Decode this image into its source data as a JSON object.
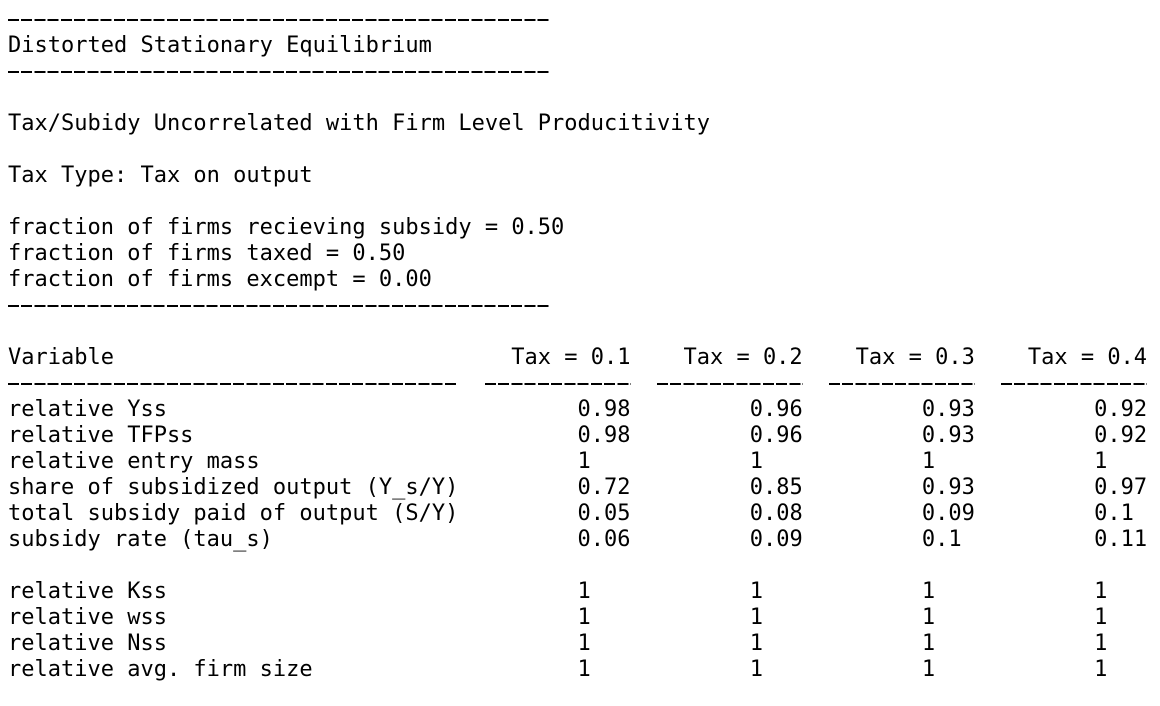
{
  "header": {
    "title": "Distorted Stationary Equilibrium"
  },
  "description": "Tax/Subidy Uncorrelated with Firm Level Producitivity",
  "tax_type": "Tax Type: Tax on output",
  "fractions": [
    "fraction of firms recieving subsidy = 0.50",
    "fraction of firms taxed = 0.50",
    "fraction of firms excempt = 0.00"
  ],
  "table": {
    "columns": [
      "Variable",
      "Tax = 0.1",
      "Tax = 0.2",
      "Tax = 0.3",
      "Tax = 0.4"
    ],
    "groups": [
      [
        [
          "relative Yss",
          "0.98",
          "0.96",
          "0.93",
          "0.92"
        ],
        [
          "relative TFPss",
          "0.98",
          "0.96",
          "0.93",
          "0.92"
        ],
        [
          "relative entry mass",
          "1",
          "1",
          "1",
          "1"
        ],
        [
          "share of subsidized output (Y_s/Y)",
          "0.72",
          "0.85",
          "0.93",
          "0.97"
        ],
        [
          "total subsidy paid of output (S/Y)",
          "0.05",
          "0.08",
          "0.09",
          "0.1"
        ],
        [
          "subsidy rate (tau_s)",
          "0.06",
          "0.09",
          "0.1",
          "0.11"
        ]
      ],
      [
        [
          "relative Kss",
          "1",
          "1",
          "1",
          "1"
        ],
        [
          "relative wss",
          "1",
          "1",
          "1",
          "1"
        ],
        [
          "relative Nss",
          "1",
          "1",
          "1",
          "1"
        ],
        [
          "relative avg. firm size",
          "1",
          "1",
          "1",
          "1"
        ]
      ]
    ]
  }
}
